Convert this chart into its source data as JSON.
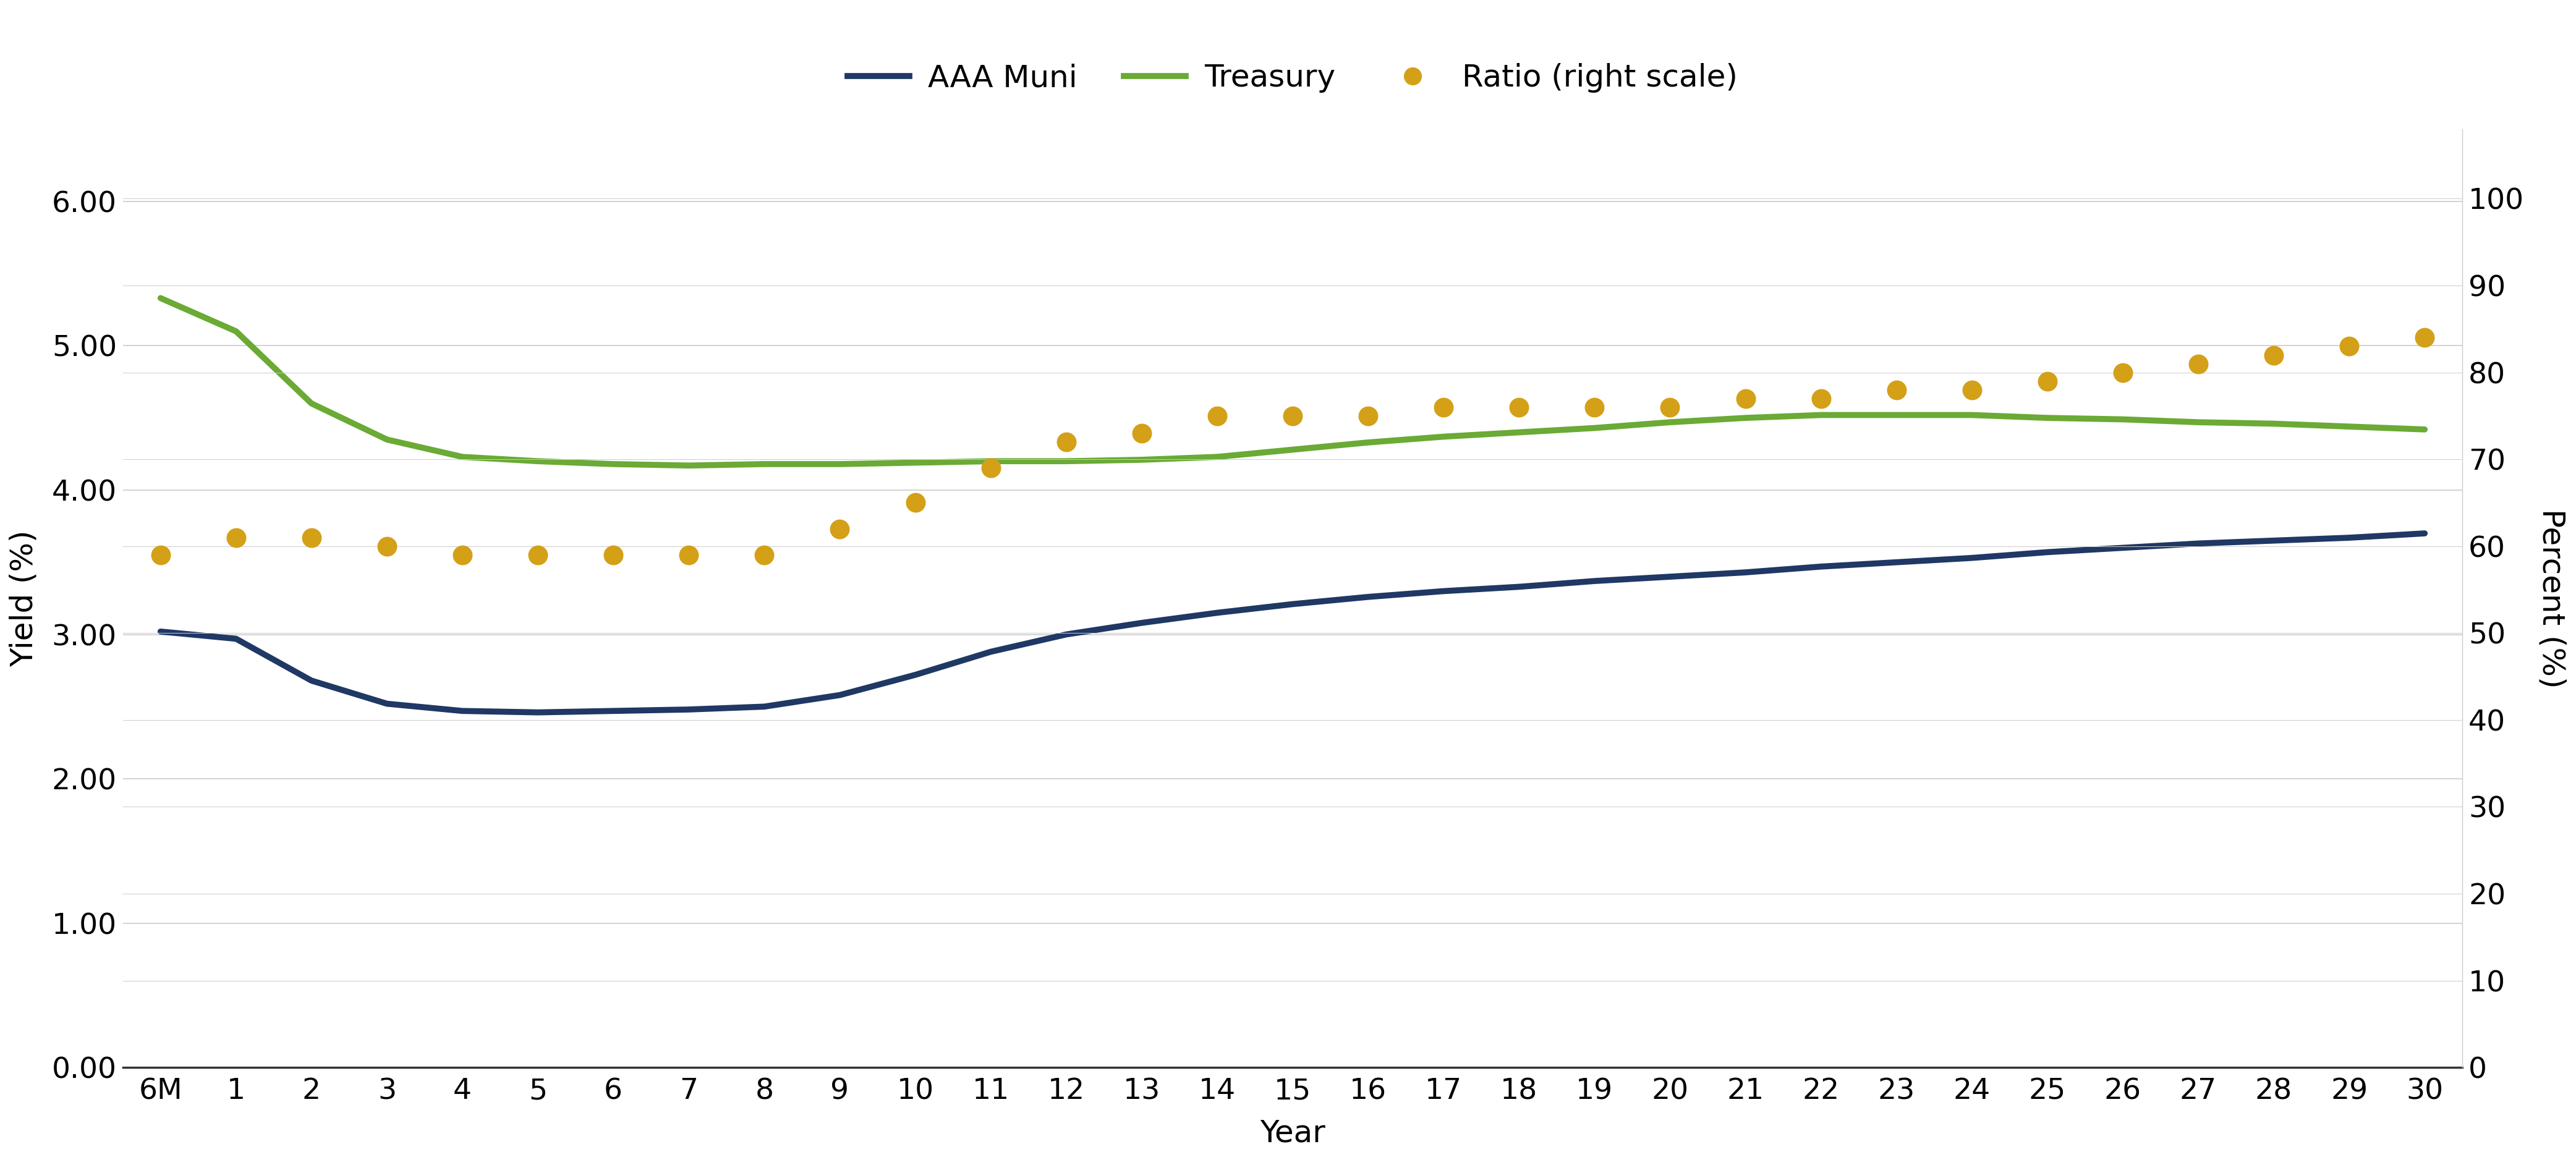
{
  "x_labels": [
    "6M",
    "1",
    "2",
    "3",
    "4",
    "5",
    "6",
    "7",
    "8",
    "9",
    "10",
    "11",
    "12",
    "13",
    "14",
    "15",
    "16",
    "17",
    "18",
    "19",
    "20",
    "21",
    "22",
    "23",
    "24",
    "25",
    "26",
    "27",
    "28",
    "29",
    "30"
  ],
  "x_positions": [
    0,
    1,
    2,
    3,
    4,
    5,
    6,
    7,
    8,
    9,
    10,
    11,
    12,
    13,
    14,
    15,
    16,
    17,
    18,
    19,
    20,
    21,
    22,
    23,
    24,
    25,
    26,
    27,
    28,
    29,
    30
  ],
  "aaa_muni": [
    3.02,
    2.97,
    2.68,
    2.52,
    2.47,
    2.46,
    2.47,
    2.48,
    2.5,
    2.58,
    2.72,
    2.88,
    3.0,
    3.08,
    3.15,
    3.21,
    3.26,
    3.3,
    3.33,
    3.37,
    3.4,
    3.43,
    3.47,
    3.5,
    3.53,
    3.57,
    3.6,
    3.63,
    3.65,
    3.67,
    3.7
  ],
  "treasury": [
    5.33,
    5.1,
    4.6,
    4.35,
    4.23,
    4.2,
    4.18,
    4.17,
    4.18,
    4.18,
    4.19,
    4.2,
    4.2,
    4.21,
    4.23,
    4.28,
    4.33,
    4.37,
    4.4,
    4.43,
    4.47,
    4.5,
    4.52,
    4.52,
    4.52,
    4.5,
    4.49,
    4.47,
    4.46,
    4.44,
    4.42
  ],
  "ratio": [
    59,
    61,
    61,
    60,
    59,
    59,
    59,
    59,
    59,
    62,
    65,
    69,
    72,
    73,
    75,
    75,
    75,
    76,
    76,
    76,
    76,
    77,
    77,
    78,
    78,
    79,
    80,
    81,
    82,
    83,
    84
  ],
  "aaa_color": "#1f3864",
  "treasury_color": "#6aaa35",
  "ratio_color": "#d4a017",
  "ylabel_left": "Yield (%)",
  "ylabel_right": "Percent (%)",
  "xlabel": "Year",
  "ylim_left": [
    0.0,
    6.5
  ],
  "ylim_right": [
    0,
    108
  ],
  "yticks_left": [
    0.0,
    1.0,
    2.0,
    3.0,
    4.0,
    5.0,
    6.0
  ],
  "ytick_labels_left": [
    "0.00",
    "1.00",
    "2.00",
    "3.00",
    "4.00",
    "5.00",
    "6.00"
  ],
  "yticks_right": [
    0,
    10,
    20,
    30,
    40,
    50,
    60,
    70,
    80,
    90,
    100
  ],
  "background_color": "#ffffff",
  "grid_color": "#cccccc",
  "legend_labels": [
    "AAA Muni",
    "Treasury",
    "Ratio (right scale)"
  ],
  "label_fontsize": 36,
  "tick_fontsize": 34,
  "legend_fontsize": 36,
  "line_width": 7,
  "marker_size": 22
}
